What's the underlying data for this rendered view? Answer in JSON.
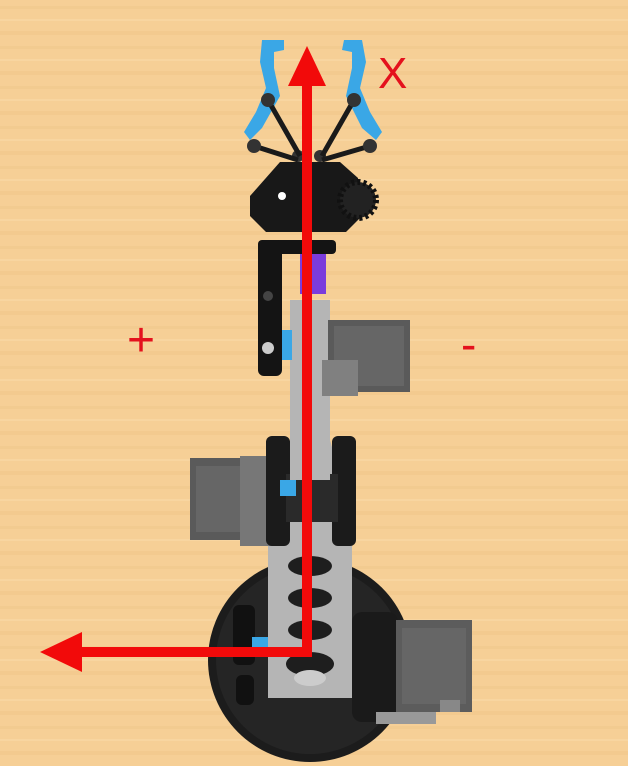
{
  "labels": {
    "x_axis": "X",
    "positive": "+",
    "negative": "-"
  },
  "colors": {
    "background": "#f6cf96",
    "axis_arrow": "#f20a0a",
    "gripper_accent": "#3aa7e6",
    "arm_link": "#b3b3b3",
    "servo_body": "#565656",
    "base": "#1b1b1b"
  },
  "icons": {
    "x_axis_arrow": "arrow-up-icon",
    "y_axis_arrow": "arrow-left-icon"
  }
}
